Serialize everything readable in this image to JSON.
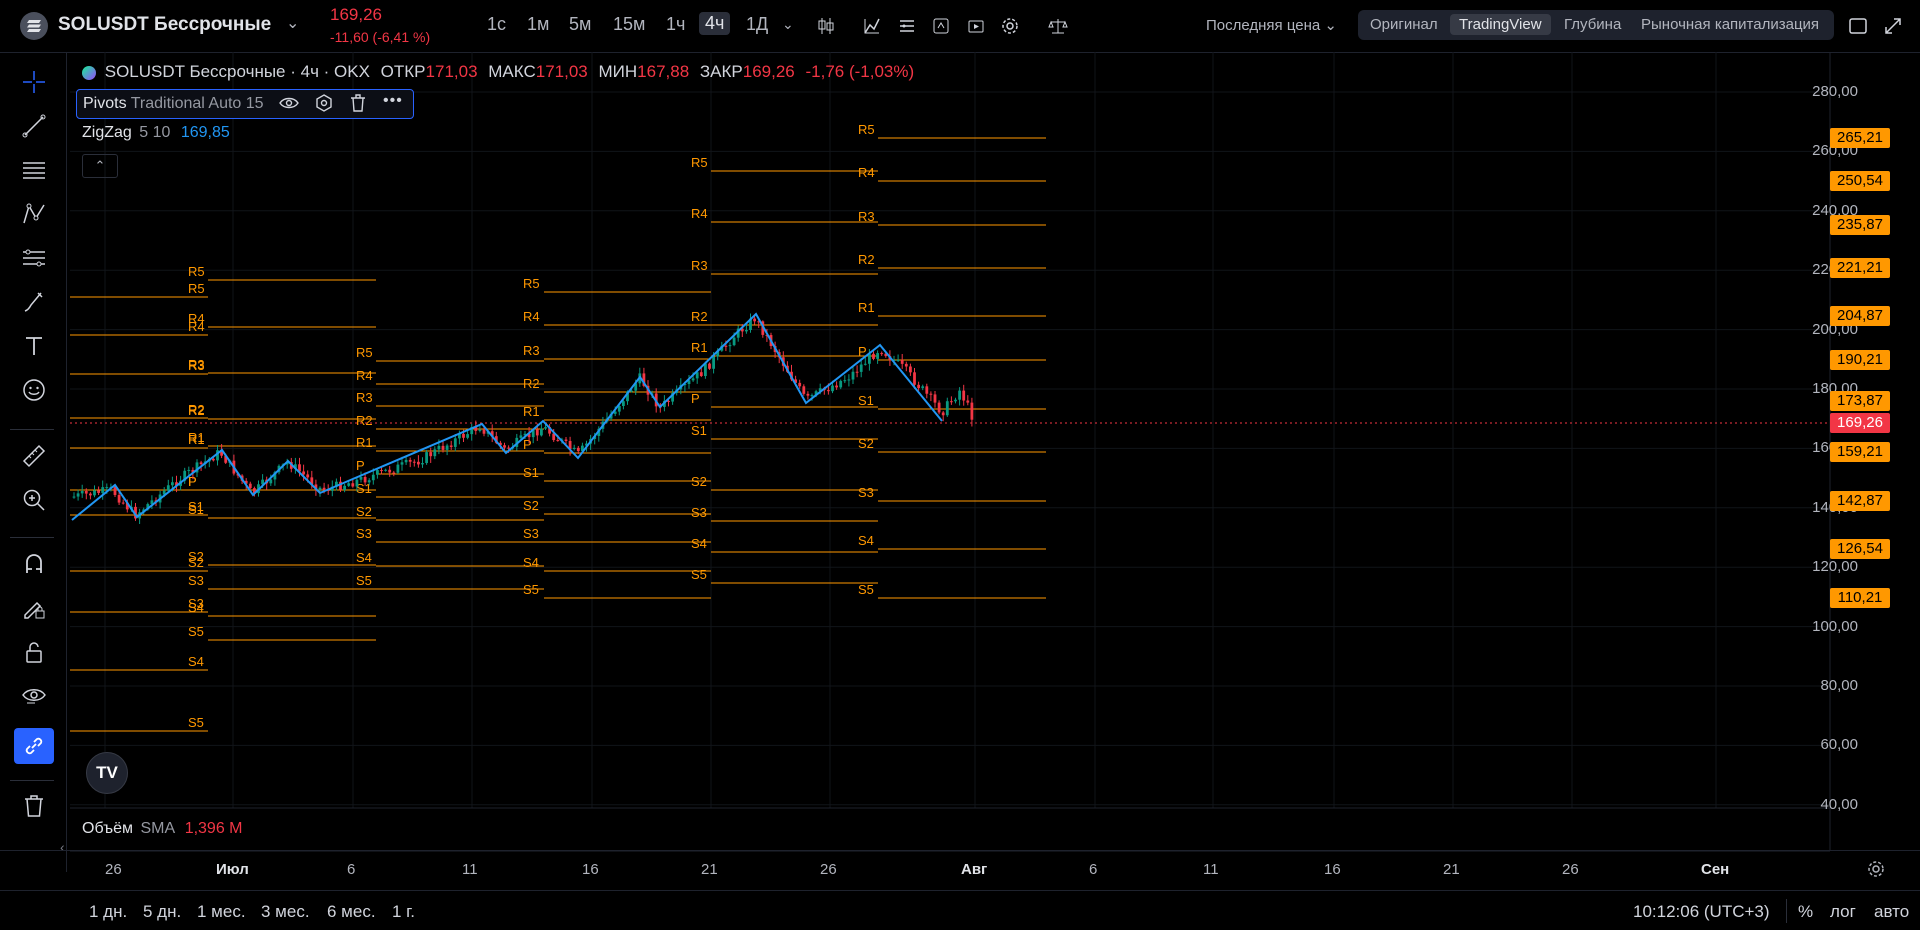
{
  "header": {
    "symbol": "SOLUSDT Бессрочные",
    "price": "169,26",
    "change": "-11,60 (-6,41 %)",
    "timeframes": [
      "1с",
      "1м",
      "5м",
      "15м",
      "1ч",
      "4ч",
      "1Д"
    ],
    "active_timeframe": "4ч",
    "price_source": "Последняя цена",
    "view_tabs": [
      "Оригинал",
      "TradingView",
      "Глубина",
      "Рыночная капитализация"
    ],
    "active_view": "TradingView"
  },
  "legend": {
    "title": "SOLUSDT Бессрочные · 4ч · OKX",
    "open_label": "ОТКР",
    "open": "171,03",
    "high_label": "МАКС",
    "high": "171,03",
    "low_label": "МИН",
    "low": "167,88",
    "close_label": "ЗАКР",
    "close": "169,26",
    "change": "-1,76 (-1,03%)"
  },
  "indicators": {
    "pivots_name": "Pivots",
    "pivots_params": "Traditional Auto 15",
    "zigzag_name": "ZigZag",
    "zigzag_params": "5 10",
    "zigzag_value": "169,85"
  },
  "volume": {
    "name": "Объём",
    "ma": "SMA",
    "value": "1,396 M"
  },
  "price_axis": [
    "280,00",
    "260,00",
    "240,00",
    "220,00",
    "200,00",
    "180,00",
    "160,00",
    "140,00",
    "120,00",
    "100,00",
    "80,00",
    "60,00",
    "40,00"
  ],
  "price_badges": [
    {
      "label": "265,21",
      "kind": "pivot"
    },
    {
      "label": "250,54",
      "kind": "pivot"
    },
    {
      "label": "235,87",
      "kind": "pivot"
    },
    {
      "label": "221,21",
      "kind": "pivot"
    },
    {
      "label": "204,87",
      "kind": "pivot"
    },
    {
      "label": "190,21",
      "kind": "pivot"
    },
    {
      "label": "173,87",
      "kind": "pivot"
    },
    {
      "label": "169,26",
      "kind": "current"
    },
    {
      "label": "159,21",
      "kind": "pivot"
    },
    {
      "label": "142,87",
      "kind": "pivot"
    },
    {
      "label": "126,54",
      "kind": "pivot"
    },
    {
      "label": "110,21",
      "kind": "pivot"
    }
  ],
  "time_axis": [
    "26",
    "Июл",
    "6",
    "11",
    "16",
    "21",
    "26",
    "Авг",
    "6",
    "11",
    "16",
    "21",
    "26",
    "Сен"
  ],
  "ranges": [
    "1 дн.",
    "5 дн.",
    "1 мес.",
    "3 мес.",
    "6 мес.",
    "1 г."
  ],
  "clock": "10:12:06 (UTC+3)",
  "scale_options": [
    "%",
    "лог",
    "авто"
  ],
  "colors": {
    "accent": "#2962ff",
    "pivot": "#ff9800",
    "down": "#f23645",
    "up": "#089981",
    "zigzag": "#2196f3"
  }
}
